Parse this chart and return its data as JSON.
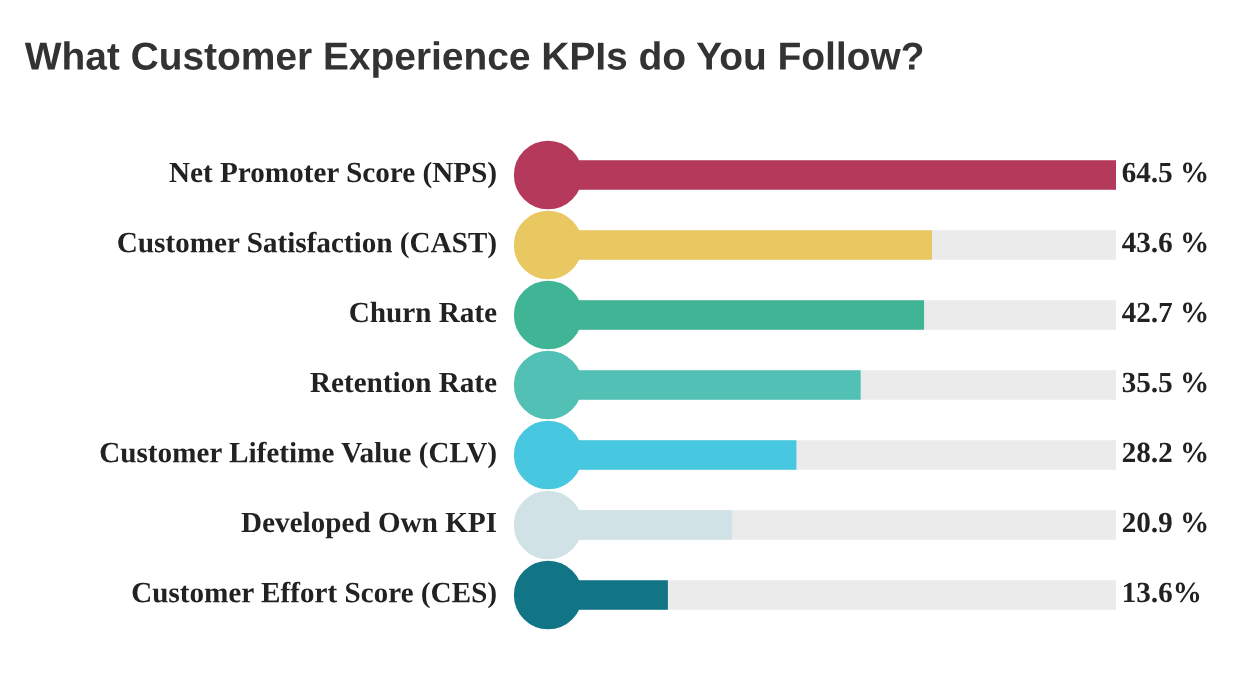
{
  "chart_data": {
    "type": "bar",
    "orientation": "horizontal",
    "title": "What Customer Experience KPIs do You Follow?",
    "categories": [
      "Net Promoter Score (NPS)",
      "Customer Satisfaction (CAST)",
      "Churn Rate",
      "Retention Rate",
      "Customer Lifetime Value (CLV)",
      "Developed Own KPI",
      "Customer Effort Score (CES)"
    ],
    "values": [
      64.5,
      43.6,
      42.7,
      35.5,
      28.2,
      20.9,
      13.6
    ],
    "value_labels": [
      "64.5 %",
      "43.6 %",
      "42.7 %",
      "35.5 %",
      "28.2 %",
      "20.9 %",
      "13.6%"
    ],
    "colors": [
      "#b5395a",
      "#e9c862",
      "#3fb595",
      "#52c0b4",
      "#47c8e0",
      "#d0e2e5",
      "#117585"
    ]
  }
}
